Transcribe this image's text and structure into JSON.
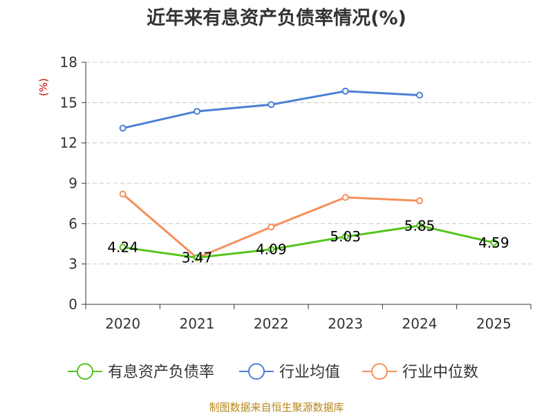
{
  "chart_data": {
    "type": "line",
    "title": "近年来有息资产负债率情况(%)",
    "ylabel": "(%)",
    "categories": [
      "2020",
      "2021",
      "2022",
      "2023",
      "2024",
      "2025"
    ],
    "ylim": [
      0,
      18
    ],
    "yticks": [
      0,
      3,
      6,
      9,
      12,
      15,
      18
    ],
    "grid": true,
    "legend": "bottom",
    "series": [
      {
        "name": "有息资产负债率",
        "color": "#52c41a",
        "values": [
          4.24,
          3.47,
          4.09,
          5.03,
          5.85,
          4.59
        ],
        "labels": [
          "4.24",
          "3.47",
          "4.09",
          "5.03",
          "5.85",
          "4.59"
        ]
      },
      {
        "name": "行业均值",
        "color": "#4a7fd6",
        "values": [
          13.1,
          14.35,
          14.85,
          15.85,
          15.55,
          null
        ]
      },
      {
        "name": "行业中位数",
        "color": "#f5905a",
        "values": [
          8.2,
          3.45,
          5.75,
          7.95,
          7.7,
          null
        ]
      }
    ]
  },
  "source": "制图数据来自恒生聚源数据库"
}
